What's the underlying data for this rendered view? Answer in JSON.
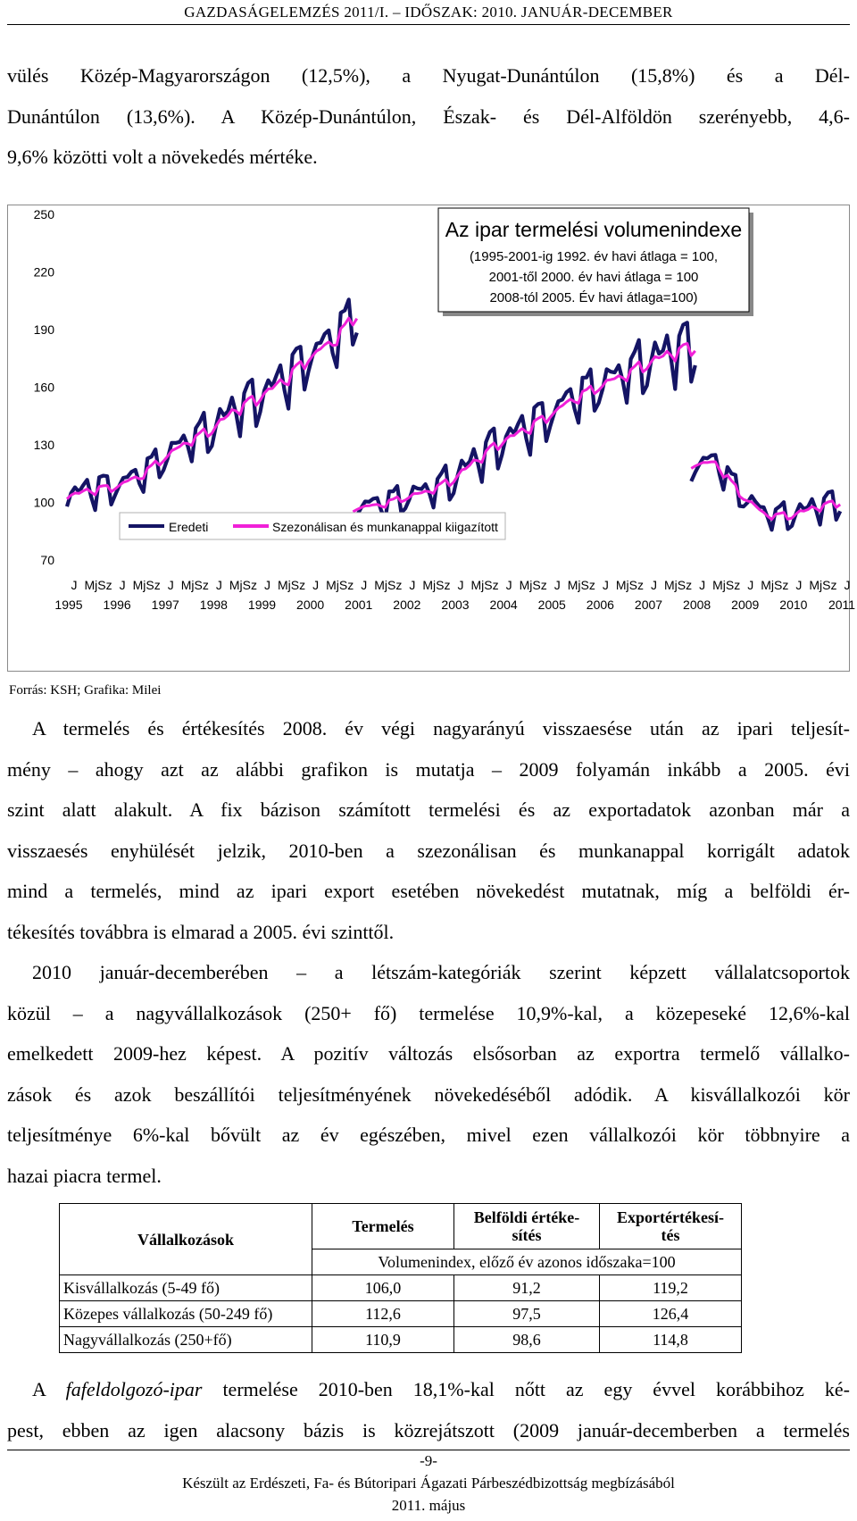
{
  "header": {
    "running_title": "GAZDASÁGELEMZÉS 2011/I. – IDŐSZAK: 2010. JANUÁR-DECEMBER"
  },
  "intro_paragraph": {
    "lines": [
      "vülés Közép-Magyarországon (12,5%), a Nyugat-Dunántúlon (15,8%) és a Dél-",
      "Dunántúlon (13,6%). A Közép-Dunántúlon, Észak- és Dél-Alföldön szerényebb, 4,6-",
      "9,6% közötti volt a növekedés mértéke."
    ]
  },
  "chart_data": {
    "type": "line",
    "title": "Az ipar termelési volumenindexe",
    "subtitle_lines": [
      "(1995-2001-ig 1992. év havi átlaga = 100,",
      "2001-től 2000. év havi átlaga = 100",
      "2008-tól 2005. Év havi átlaga=100)"
    ],
    "ylim": [
      70,
      250
    ],
    "y_ticks": [
      "250",
      "220",
      "190",
      "160",
      "130",
      "100",
      "70"
    ],
    "x_month_labels": [
      "J",
      "MjSz",
      "J",
      "MjSz",
      "J",
      "MjSz",
      "J",
      "MjSz",
      "J",
      "MjSz",
      "J",
      "MjSz",
      "J",
      "MjSz",
      "J",
      "MjSz",
      "J",
      "MjSz",
      "J",
      "MjSz",
      "J",
      "MjSz",
      "J",
      "MjSz",
      "J",
      "MjSz",
      "J",
      "MjSz",
      "J",
      "MjSz",
      "J",
      "MjSz",
      "J"
    ],
    "x_year_labels": [
      "1995",
      "1996",
      "1997",
      "1998",
      "1999",
      "2000",
      "2001",
      "2002",
      "2003",
      "2004",
      "2005",
      "2006",
      "2007",
      "2008",
      "2009",
      "2010",
      "2011"
    ],
    "legend": {
      "placement": "bottom-left",
      "entries": [
        "Eredeti",
        "Szezonálisan és munkanappal kiigazított"
      ]
    },
    "series": [
      {
        "name": "Eredeti",
        "color": "#141464",
        "segments": [
          {
            "start": 1995.0,
            "end": 2001.0,
            "base": 103,
            "growth": [
              0,
              3,
              5,
              10,
              20,
              28,
              35,
              45,
              52,
              60,
              72,
              80,
              95
            ],
            "amplitude": 0.085
          },
          {
            "start": 2000.92,
            "end": 2008.0,
            "base": 97,
            "growth": [
              0,
              1,
              5,
              8,
              14,
              24,
              34,
              40,
              48,
              56,
              63,
              68,
              75,
              80,
              84
            ],
            "amplitude": 0.09
          },
          {
            "start": 2007.92,
            "end": 2011.0,
            "base": 120,
            "growth": [
              0,
              0,
              -16,
              -27,
              -27,
              -23,
              -20
            ],
            "amplitude": 0.08
          }
        ]
      },
      {
        "name": "Szezonálisan és munkanappal kiigazított",
        "color": "#f020d8",
        "segments": [
          {
            "start": 1995.0,
            "end": 2001.0,
            "base": 103,
            "growth": [
              0,
              3,
              5,
              10,
              20,
              28,
              35,
              45,
              52,
              60,
              72,
              80,
              95
            ],
            "amplitude": 0.02
          },
          {
            "start": 2000.92,
            "end": 2008.0,
            "base": 97,
            "growth": [
              0,
              1,
              5,
              8,
              14,
              24,
              34,
              40,
              48,
              56,
              63,
              68,
              75,
              80,
              84
            ],
            "amplitude": 0.02
          },
          {
            "start": 2007.92,
            "end": 2011.0,
            "base": 120,
            "growth": [
              0,
              0,
              -16,
              -27,
              -27,
              -23,
              -20
            ],
            "amplitude": 0.02
          }
        ]
      }
    ]
  },
  "source_note": "Forrás: KSH; Grafika: Milei",
  "paragraph2": {
    "lines": [
      "A termelés és értékesítés 2008. év végi nagyarányú visszaesése után az ipari teljesít-",
      "mény – ahogy azt az alábbi grafikon is mutatja – 2009 folyamán inkább a 2005. évi",
      "szint alatt alakult. A fix bázison számított termelési és az exportadatok azonban már a",
      "visszaesés enyhülését jelzik, 2010-ben a szezonálisan és munkanappal korrigált adatok",
      "mind a termelés, mind az ipari export esetében növekedést mutatnak, míg a belföldi ér-",
      "tékesítés továbbra is elmarad a 2005. évi szinttől."
    ]
  },
  "paragraph3": {
    "lines": [
      "2010 január-decemberében – a létszám-kategóriák szerint képzett vállalatcsoportok",
      "közül – a nagyvállalkozások (250+ fő) termelése 10,9%-kal, a közepeseké 12,6%-kal",
      "emelkedett 2009-hez képest. A pozitív változás elsősorban az exportra termelő vállalko-",
      "zások és azok beszállítói teljesítményének növekedéséből adódik. A kisvállalkozói kör",
      "teljesítménye 6%-kal bővült az év egészében, mivel ezen vállalkozói kör többnyire a",
      "hazai piacra termel."
    ]
  },
  "table": {
    "col_headers": [
      "Vállalkozások",
      "Termelés",
      "Belföldi értéke-\nsítés",
      "Exportértékesí-\ntés"
    ],
    "subheader": "Volumenindex, előző év azonos időszaka=100",
    "rows": [
      {
        "label": "Kisvállalkozás (5-49 fő)",
        "values": [
          "106,0",
          "91,2",
          "119,2"
        ]
      },
      {
        "label": "Közepes vállalkozás (50-249 fő)",
        "values": [
          "112,6",
          "97,5",
          "126,4"
        ]
      },
      {
        "label": "Nagyvállalkozás (250+fő)",
        "values": [
          "110,9",
          "98,6",
          "114,8"
        ]
      }
    ]
  },
  "paragraph4": {
    "line1_prefix": "A ",
    "line1_italic": "fafeldolgozó-ipar",
    "line1_suffix": " termelése 2010-ben 18,1%-kal nőtt az egy évvel korábbihoz ké-",
    "line2": "pest, ebben az igen alacsony bázis is közrejátszott (2009 január-decemberben a termelés"
  },
  "footer": {
    "page_number": "-9-",
    "line1": "Készült az Erdészeti, Fa- és Bútoripari Ágazati Párbeszédbizottság megbízásából",
    "line2": "2011. május"
  }
}
